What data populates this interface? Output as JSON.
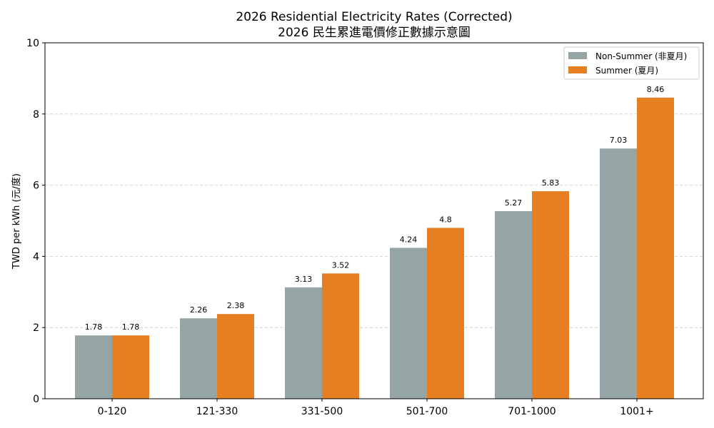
{
  "chart_data": {
    "type": "bar",
    "title": "2026 Residential Electricity Rates (Corrected)",
    "subtitle": "2026 民生累進電價修正數據示意圖",
    "xlabel": "",
    "ylabel": "TWD per kWh (元/度)",
    "ylim": [
      0,
      10
    ],
    "yticks": [
      0,
      2,
      4,
      6,
      8,
      10
    ],
    "grid": "y-dashed",
    "legend": "top-right",
    "categories": [
      "0-120",
      "121-330",
      "331-500",
      "501-700",
      "701-1000",
      "1001+"
    ],
    "series": [
      {
        "name": "Non-Summer (非夏月)",
        "color": "#95a5a6",
        "values": [
          1.78,
          2.26,
          3.13,
          4.24,
          5.27,
          7.03
        ],
        "labels": [
          "1.78",
          "2.26",
          "3.13",
          "4.24",
          "5.27",
          "7.03"
        ]
      },
      {
        "name": "Summer (夏月)",
        "color": "#e67e22",
        "values": [
          1.78,
          2.38,
          3.52,
          4.8,
          5.83,
          8.46
        ],
        "labels": [
          "1.78",
          "2.38",
          "3.52",
          "4.8",
          "5.83",
          "8.46"
        ]
      }
    ]
  }
}
